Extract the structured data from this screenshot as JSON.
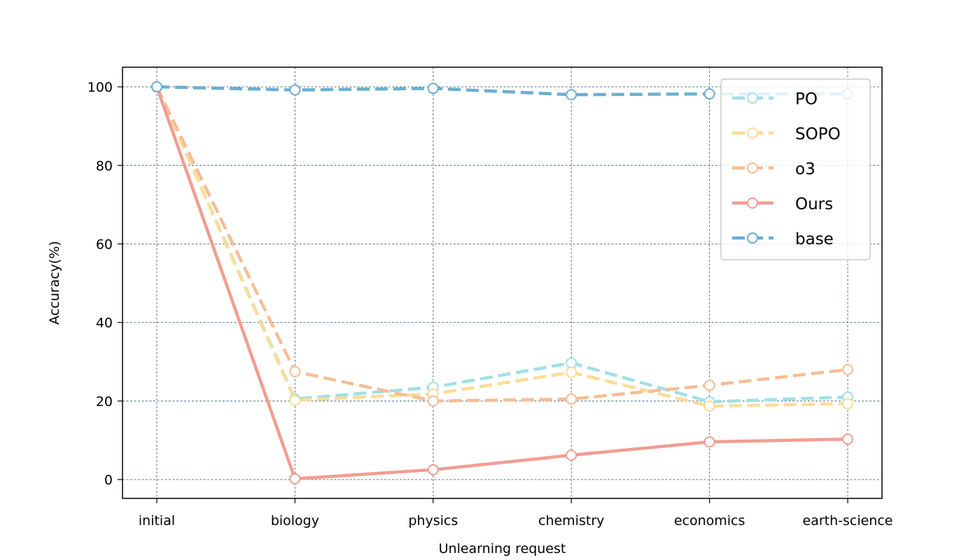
{
  "chart_data": {
    "type": "line",
    "title": "",
    "xlabel": "Unlearning request",
    "ylabel": "Accuracy(%)",
    "categories": [
      "initial",
      "biology",
      "physics",
      "chemistry",
      "economics",
      "earth-science"
    ],
    "ylim": [
      -4.8,
      105
    ],
    "yticks": [
      0,
      20,
      40,
      60,
      80,
      100
    ],
    "grid": true,
    "legend_position": "top-right",
    "series": [
      {
        "name": "PO",
        "color": "#a0e0e6",
        "dash": "dashed",
        "values": [
          100,
          20.5,
          23.5,
          29.7,
          19.8,
          21.0
        ]
      },
      {
        "name": "SOPO",
        "color": "#f9dd97",
        "dash": "dashed",
        "values": [
          100,
          20.2,
          21.8,
          27.3,
          18.7,
          19.3
        ]
      },
      {
        "name": "o3",
        "color": "#f6bd96",
        "dash": "dashed",
        "values": [
          100,
          27.5,
          20.0,
          20.5,
          24.0,
          28.0
        ]
      },
      {
        "name": "Ours",
        "color": "#f29d92",
        "dash": "solid",
        "values": [
          100,
          0.2,
          2.5,
          6.2,
          9.6,
          10.3
        ]
      },
      {
        "name": "base",
        "color": "#6aafd0",
        "dash": "dashed",
        "values": [
          100,
          99.2,
          99.6,
          98.0,
          98.2,
          98.2
        ]
      }
    ]
  }
}
